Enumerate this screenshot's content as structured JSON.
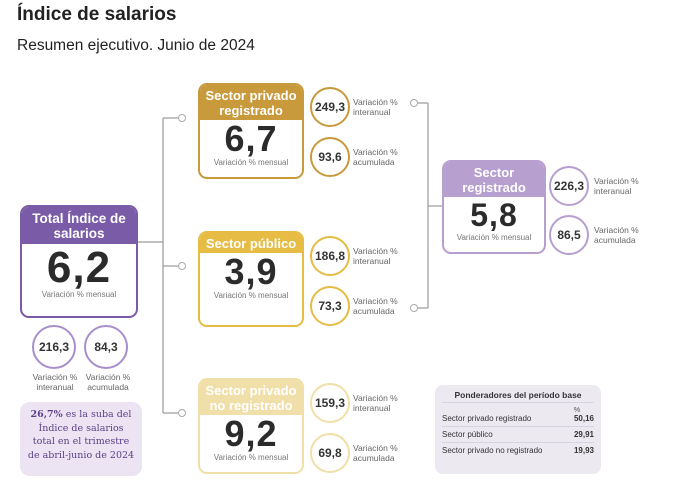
{
  "title": "Índice de salarios",
  "subtitle": "Resumen ejecutivo. Junio de 2024",
  "total": {
    "label": "Total Índice de salarios",
    "value": "6,2",
    "caption": "Variación % mensual",
    "interanual": "216,3",
    "interanual_label": "Variación % interanual",
    "acumulada": "84,3",
    "acumulada_label": "Variación % acumulada"
  },
  "privado": {
    "label": "Sector privado registrado",
    "value": "6,7",
    "caption": "Variación % mensual",
    "interanual": "249,3",
    "interanual_label": "Variación % interanual",
    "acumulada": "93,6",
    "acumulada_label": "Variación % acumulada"
  },
  "publico": {
    "label": "Sector público",
    "value": "3,9",
    "caption": "Variación % mensual",
    "interanual": "186,8",
    "interanual_label": "Variación % interanual",
    "acumulada": "73,3",
    "acumulada_label": "Variación % acumulada"
  },
  "noregistrado": {
    "label": "Sector privado no registrado",
    "value": "9,2",
    "caption": "Variación % mensual",
    "interanual": "159,3",
    "interanual_label": "Variación % interanual",
    "acumulada": "69,8",
    "acumulada_label": "Variación % acumulada"
  },
  "registrado": {
    "label": "Sector registrado",
    "value": "5,8",
    "caption": "Variación % mensual",
    "interanual": "226,3",
    "interanual_label": "Variación % interanual",
    "acumulada": "86,5",
    "acumulada_label": "Variación % acumulada"
  },
  "note": {
    "highlight": "26,7%",
    "text": "es la suba del Índice de salarios total en el trimestre de abril-junio de 2024"
  },
  "ponderadores": {
    "title": "Ponderadores del período base",
    "unit": "%",
    "rows": [
      {
        "label": "Sector privado registrado",
        "value": "50,16"
      },
      {
        "label": "Sector público",
        "value": "29,91"
      },
      {
        "label": "Sector privado no registrado",
        "value": "19,93"
      }
    ]
  },
  "colors": {
    "purple": "#7a5ba8",
    "purple_light": "#b79fd0",
    "gold": "#c99a3c",
    "yellow": "#e7bc45",
    "cream": "#f0dfa8"
  }
}
